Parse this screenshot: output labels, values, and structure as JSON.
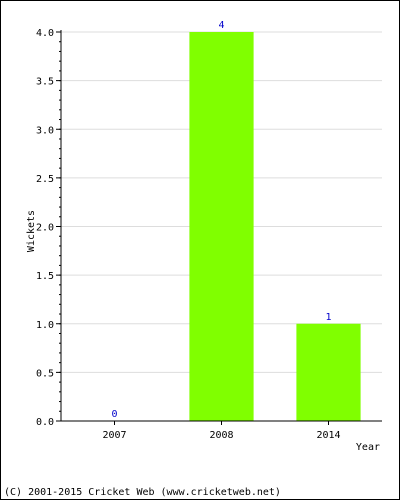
{
  "chart_data": {
    "type": "bar",
    "categories": [
      "2007",
      "2008",
      "2014"
    ],
    "values": [
      0,
      4,
      1
    ],
    "data_labels": [
      "0",
      "4",
      "1"
    ],
    "title": "",
    "xlabel": "Year",
    "ylabel": "Wickets",
    "ylim": [
      0,
      4
    ],
    "y_ticks": [
      "0.0",
      "0.5",
      "1.0",
      "1.5",
      "2.0",
      "2.5",
      "3.0",
      "3.5",
      "4.0"
    ],
    "grid": "horizontal",
    "bar_color": "#80ff00",
    "label_color": "#0000cc",
    "grid_color": "#dddddd"
  },
  "footer": {
    "text": "(C) 2001-2015 Cricket Web (www.cricketweb.net)"
  }
}
